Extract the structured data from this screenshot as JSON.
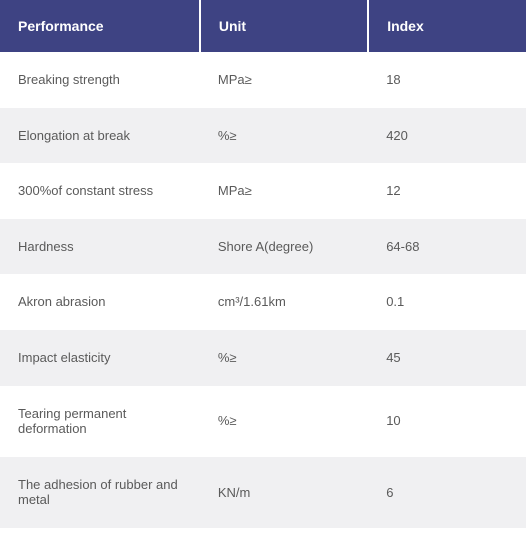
{
  "table": {
    "columns": [
      "Performance",
      "Unit",
      "Index"
    ],
    "rows": [
      {
        "performance": "Breaking strength",
        "unit": "MPa≥",
        "index": "18"
      },
      {
        "performance": "Elongation at break",
        "unit": "%≥",
        "index": "420"
      },
      {
        "performance": "300%of constant stress",
        "unit": "MPa≥",
        "index": "12"
      },
      {
        "performance": "Hardness",
        "unit": "Shore A(degree)",
        "index": "64-68"
      },
      {
        "performance": "Akron abrasion",
        "unit": "cm³/1.61km",
        "index": "0.1"
      },
      {
        "performance": "Impact elasticity",
        "unit": "%≥",
        "index": "45"
      },
      {
        "performance": "Tearing permanent deformation",
        "unit": "%≥",
        "index": "10"
      },
      {
        "performance": "The adhesion of rubber and metal",
        "unit": "KN/m",
        "index": "6"
      }
    ],
    "header_bg": "#3e4383",
    "header_text_color": "#ffffff",
    "row_even_bg": "#ffffff",
    "row_odd_bg": "#f0f0f2",
    "cell_text_color": "#5a5a5a",
    "header_fontsize": 14,
    "cell_fontsize": 13
  }
}
